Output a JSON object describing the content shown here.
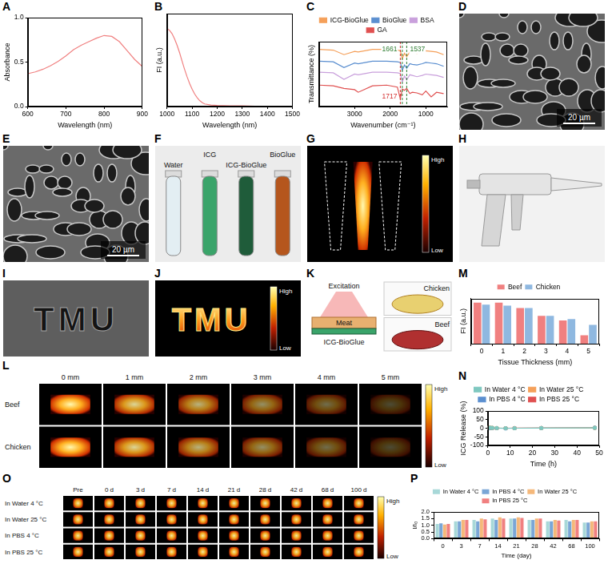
{
  "chart_data": [
    {
      "panel": "A",
      "type": "line",
      "x": [
        600,
        620,
        640,
        660,
        680,
        700,
        720,
        740,
        760,
        780,
        800,
        820,
        840,
        860,
        880,
        900
      ],
      "values": [
        0.37,
        0.39,
        0.42,
        0.46,
        0.51,
        0.57,
        0.64,
        0.69,
        0.73,
        0.77,
        0.8,
        0.79,
        0.73,
        0.63,
        0.53,
        0.45
      ],
      "color": "#f08080",
      "xlim": [
        600,
        900
      ],
      "ylim": [
        0,
        1
      ],
      "xticks": [
        600,
        700,
        800,
        900
      ],
      "yticks": [
        {
          "value": 0,
          "label": "0.0"
        },
        {
          "value": 0.5,
          "label": "0.5"
        },
        {
          "value": 1,
          "label": "1.0"
        }
      ],
      "x_label": "Wavelength (nm)",
      "y_label": "Absorbance",
      "grid": false
    },
    {
      "panel": "B",
      "type": "line",
      "x": [
        1000,
        1010,
        1020,
        1030,
        1040,
        1050,
        1060,
        1070,
        1080,
        1090,
        1100,
        1110,
        1120,
        1130,
        1140,
        1150,
        1175,
        1200,
        1250,
        1300,
        1350,
        1400,
        1450,
        1500
      ],
      "values": [
        210,
        205,
        196,
        182,
        165,
        145,
        122,
        100,
        80,
        62,
        47,
        34,
        24,
        16,
        11,
        7,
        4,
        3,
        2,
        2,
        1,
        1,
        1,
        1
      ],
      "color": "#f08080",
      "xlim": [
        1000,
        1500
      ],
      "ylim": [
        0,
        250
      ],
      "xticks": [
        1000,
        1100,
        1200,
        1300,
        1400,
        1500
      ],
      "x_label": "Wavelength (nm)",
      "y_label": "FI (a.u.)",
      "grid": false,
      "tick_labels": "x"
    },
    {
      "panel": "C",
      "type": "line",
      "x": [
        4000,
        3600,
        3300,
        3000,
        2900,
        2500,
        2100,
        1800,
        1717,
        1661,
        1600,
        1537,
        1450,
        1380,
        1250,
        1100,
        1000,
        850,
        700,
        500
      ],
      "series": [
        {
          "name": "ICG-BioGlue",
          "color": "#f5a05a",
          "values": [
            88,
            87,
            80,
            85,
            84,
            88,
            88,
            87,
            86,
            74,
            82,
            77,
            84,
            83,
            82,
            84,
            86,
            85,
            84,
            80
          ]
        },
        {
          "name": "BioGlue",
          "color": "#5b8fd0",
          "values": [
            70,
            69,
            60,
            67,
            66,
            70,
            70,
            69,
            68,
            56,
            64,
            59,
            66,
            65,
            64,
            66,
            68,
            67,
            66,
            62
          ]
        },
        {
          "name": "BSA",
          "color": "#c9a0dc",
          "values": [
            53,
            52,
            42,
            50,
            49,
            53,
            53,
            52,
            51,
            38,
            47,
            41,
            49,
            48,
            46,
            48,
            50,
            49,
            48,
            45
          ]
        },
        {
          "name": "GA",
          "color": "#e05050",
          "values": [
            33,
            32,
            28,
            26,
            22,
            32,
            33,
            30,
            12,
            27,
            25,
            28,
            20,
            22,
            21,
            18,
            24,
            15,
            22,
            20
          ]
        }
      ],
      "annotations": [
        {
          "text": "1661",
          "x": 1661,
          "color": "#2e7d32"
        },
        {
          "text": "1537",
          "x": 1537,
          "color": "#2e7d32"
        },
        {
          "text": "1717",
          "x": 1717,
          "color": "#d32f2f"
        }
      ],
      "xlim": [
        4000,
        400
      ],
      "ylim": [
        0,
        100
      ],
      "xticks": [
        3000,
        2000,
        1000
      ],
      "x_label": "Wavenumber (cm⁻¹)",
      "y_label": "Transmittance (%)",
      "grid": false,
      "tick_labels": "x",
      "legend": "top"
    },
    {
      "panel": "M",
      "type": "bar",
      "categories": [
        "0",
        "1",
        "2",
        "3",
        "4",
        "5"
      ],
      "series": [
        {
          "name": "Beef",
          "color": "#f08080",
          "values": [
            1270,
            1270,
            1100,
            860,
            720,
            260
          ]
        },
        {
          "name": "Chicken",
          "color": "#8fb8e0",
          "values": [
            1210,
            1180,
            1100,
            860,
            760,
            580
          ]
        }
      ],
      "ylim": [
        0,
        1400
      ],
      "x_label": "Tissue Thickness (mm)",
      "y_label": "FI (a.u.)",
      "grid": false,
      "tick_labels": "x",
      "legend": "top"
    },
    {
      "panel": "N",
      "type": "line",
      "x": [
        0,
        1,
        2,
        4,
        8,
        12,
        24,
        48
      ],
      "series": [
        {
          "name": "In Water 4 °C",
          "color": "#7fc8c0",
          "values": [
            1,
            3,
            2,
            1,
            0,
            0,
            1,
            2
          ]
        },
        {
          "name": "In Water 25 °C",
          "color": "#f5a05a",
          "values": [
            4,
            3,
            2,
            1,
            0,
            0,
            1,
            2
          ]
        },
        {
          "name": "In PBS 4 °C",
          "color": "#5b8fd0",
          "values": [
            2,
            1,
            1,
            0,
            -1,
            0,
            1,
            3
          ]
        },
        {
          "name": "In PBS 25 °C",
          "color": "#e05050",
          "values": [
            3,
            2,
            1,
            0,
            0,
            1,
            1,
            2
          ]
        }
      ],
      "marker": "circle",
      "xlim": [
        0,
        50
      ],
      "ylim": [
        -100,
        100
      ],
      "xticks": [
        0,
        10,
        20,
        30,
        40,
        50
      ],
      "yticks": [
        -100,
        -50,
        0,
        50,
        100
      ],
      "x_label": "Time (h)",
      "y_label": "ICG Release (%)",
      "grid": false,
      "legend": "top"
    },
    {
      "panel": "P",
      "type": "bar",
      "categories": [
        "0",
        "3",
        "7",
        "14",
        "21",
        "28",
        "42",
        "68",
        "100"
      ],
      "series": [
        {
          "name": "In Water 4 °C",
          "color": "#a8d8d8",
          "values": [
            1.1,
            1.3,
            1.4,
            1.5,
            1.5,
            1.4,
            1.3,
            1.4,
            1.2
          ]
        },
        {
          "name": "In PBS 4 °C",
          "color": "#7aa6d6",
          "values": [
            1.15,
            1.3,
            1.3,
            1.4,
            1.5,
            1.4,
            1.3,
            1.3,
            1.2
          ]
        },
        {
          "name": "In Water 25 °C",
          "color": "#f5b87a",
          "values": [
            1.05,
            1.4,
            1.5,
            1.6,
            1.6,
            1.5,
            1.4,
            1.4,
            1.3
          ]
        },
        {
          "name": "In PBS 25 °C",
          "color": "#f08080",
          "values": [
            1.1,
            1.4,
            1.45,
            1.5,
            1.55,
            1.5,
            1.35,
            1.4,
            1.3
          ]
        }
      ],
      "ylim": [
        0,
        2
      ],
      "yticks": [
        {
          "value": 0,
          "label": "0.0"
        },
        {
          "value": 0.5,
          "label": "0.5"
        },
        {
          "value": 1,
          "label": "1.0"
        },
        {
          "value": 1.5,
          "label": "1.5"
        },
        {
          "value": 2,
          "label": "2.0"
        }
      ],
      "x_label": "Time (day)",
      "y_label": "I/I₀",
      "grid": false,
      "legend": "top"
    }
  ],
  "image_panels": [
    {
      "panel": "D",
      "type": "sem",
      "scale_bar": "20 µm"
    },
    {
      "panel": "E",
      "type": "sem",
      "scale_bar": "20 µm"
    },
    {
      "panel": "F",
      "type": "tubes",
      "labels": [
        "Water",
        "ICG",
        "ICG-BioGlue",
        "BioGlue"
      ]
    },
    {
      "panel": "G",
      "type": "tube_fluorescence",
      "colorbar": [
        "High",
        "Low"
      ]
    },
    {
      "panel": "H",
      "type": "device"
    },
    {
      "panel": "I",
      "type": "text_photo",
      "text": "TMU"
    },
    {
      "panel": "J",
      "type": "text_fluorescence",
      "text": "TMU",
      "colorbar": [
        "High",
        "Low"
      ]
    },
    {
      "panel": "K",
      "type": "diagram",
      "labels": [
        "Excitation",
        "Meat",
        "ICG-BioGlue"
      ],
      "photos": [
        "Chicken",
        "Beef"
      ]
    },
    {
      "panel": "L",
      "type": "grid",
      "rows": [
        "Beef",
        "Chicken"
      ],
      "columns": [
        "0 mm",
        "1 mm",
        "2 mm",
        "3 mm",
        "4 mm",
        "5 mm"
      ],
      "colorbar": [
        "High",
        "Low"
      ]
    },
    {
      "panel": "O",
      "type": "grid",
      "rows": [
        "In Water 4 °C",
        "In Water 25 °C",
        "In PBS 4 °C",
        "In PBS 25 °C"
      ],
      "columns": [
        "Pre",
        "0 d",
        "3 d",
        "7 d",
        "14 d",
        "21 d",
        "28 d",
        "42 d",
        "68 d",
        "100 d"
      ],
      "colorbar": [
        "High",
        "Low"
      ]
    }
  ]
}
